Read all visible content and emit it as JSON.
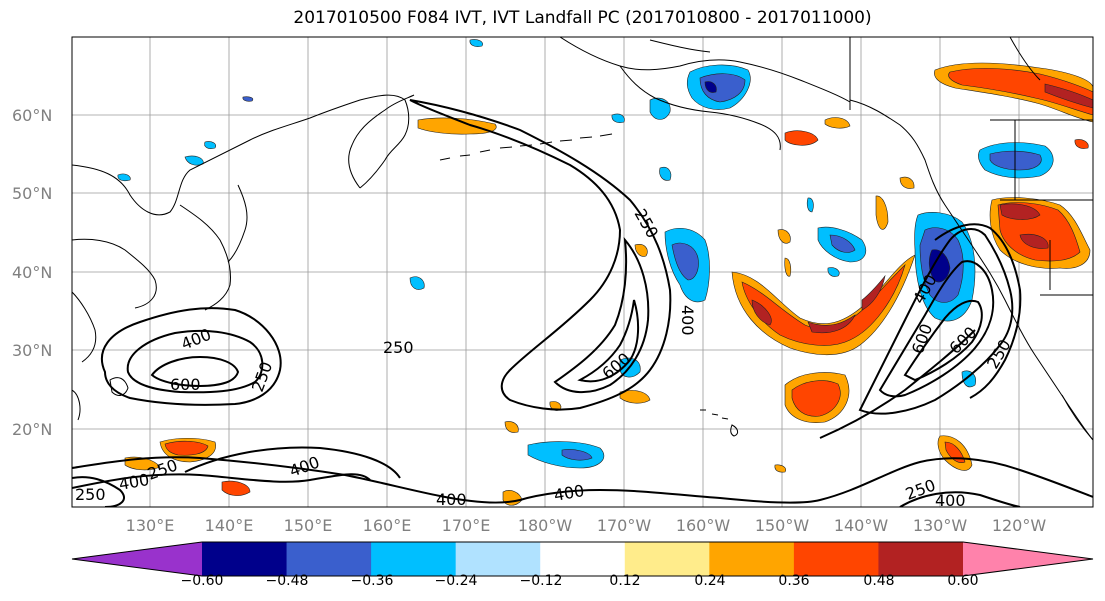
{
  "title": "2017010500 F084 IVT, IVT Landfall PC (2017010800 - 2017011000)",
  "lat_ticks": [
    "60°N",
    "50°N",
    "40°N",
    "30°N",
    "20°N"
  ],
  "lon_ticks": [
    "130°E",
    "140°E",
    "150°E",
    "160°E",
    "170°E",
    "180°W",
    "170°W",
    "160°W",
    "150°W",
    "140°W",
    "130°W",
    "120°W"
  ],
  "colorbar": {
    "ticks": [
      "−0.60",
      "−0.48",
      "−0.36",
      "−0.24",
      "−0.12",
      "0.12",
      "0.24",
      "0.36",
      "0.48",
      "0.60"
    ],
    "colors": [
      "#9932cc",
      "#00008b",
      "#3a5fcd",
      "#00bfff",
      "#b0e2ff",
      "#ffffff",
      "#ffec8b",
      "#ffa500",
      "#ff4500",
      "#b22222",
      "#ff82ab"
    ]
  },
  "contour_labels": [
    "250",
    "400",
    "600",
    "250",
    "400",
    "600",
    "400",
    "250",
    "600",
    "400",
    "250",
    "400",
    "400",
    "250",
    "400",
    "600",
    "400",
    "250",
    "400",
    "250"
  ]
}
